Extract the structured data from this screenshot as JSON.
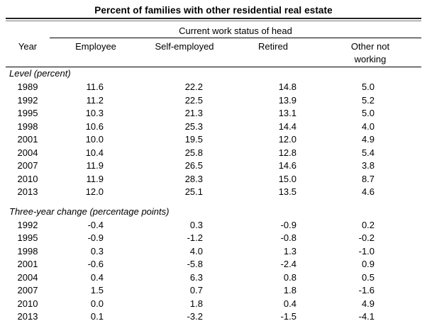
{
  "table": {
    "title": "Percent of families with other residential real estate",
    "spanner": "Current work status of head",
    "columns": [
      "Year",
      "Employee",
      "Self-employed",
      "Retired",
      "Other not working"
    ],
    "sections": [
      {
        "label": "Level (percent)",
        "rows": [
          {
            "year": "1989",
            "values": [
              "11.6",
              "22.2",
              "14.8",
              "5.0"
            ]
          },
          {
            "year": "1992",
            "values": [
              "11.2",
              "22.5",
              "13.9",
              "5.2"
            ]
          },
          {
            "year": "1995",
            "values": [
              "10.3",
              "21.3",
              "13.1",
              "5.0"
            ]
          },
          {
            "year": "1998",
            "values": [
              "10.6",
              "25.3",
              "14.4",
              "4.0"
            ]
          },
          {
            "year": "2001",
            "values": [
              "10.0",
              "19.5",
              "12.0",
              "4.9"
            ]
          },
          {
            "year": "2004",
            "values": [
              "10.4",
              "25.8",
              "12.8",
              "5.4"
            ]
          },
          {
            "year": "2007",
            "values": [
              "11.9",
              "26.5",
              "14.6",
              "3.8"
            ]
          },
          {
            "year": "2010",
            "values": [
              "11.9",
              "28.3",
              "15.0",
              "8.7"
            ]
          },
          {
            "year": "2013",
            "values": [
              "12.0",
              "25.1",
              "13.5",
              "4.6"
            ]
          }
        ]
      },
      {
        "label": "Three-year change (percentage points)",
        "rows": [
          {
            "year": "1992",
            "values": [
              "-0.4",
              "0.3",
              "-0.9",
              "0.2"
            ]
          },
          {
            "year": "1995",
            "values": [
              "-0.9",
              "-1.2",
              "-0.8",
              "-0.2"
            ]
          },
          {
            "year": "1998",
            "values": [
              "0.3",
              "4.0",
              "1.3",
              "-1.0"
            ]
          },
          {
            "year": "2001",
            "values": [
              "-0.6",
              "-5.8",
              "-2.4",
              "0.9"
            ]
          },
          {
            "year": "2004",
            "values": [
              "0.4",
              "6.3",
              "0.8",
              "0.5"
            ]
          },
          {
            "year": "2007",
            "values": [
              "1.5",
              "0.7",
              "1.8",
              "-1.6"
            ]
          },
          {
            "year": "2010",
            "values": [
              "0.0",
              "1.8",
              "0.4",
              "4.9"
            ]
          },
          {
            "year": "2013",
            "values": [
              "0.1",
              "-3.2",
              "-1.5",
              "-4.1"
            ]
          }
        ]
      }
    ]
  },
  "colors": {
    "background": "#ffffff",
    "text": "#000000",
    "rule": "#000000",
    "title_rule_top": "#222222",
    "title_rule_bottom": "#777777",
    "bottom_rule": "#808080"
  }
}
